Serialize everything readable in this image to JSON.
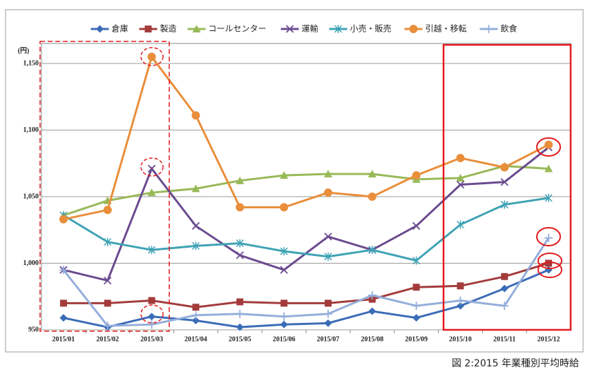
{
  "chart_data": {
    "type": "line",
    "y_unit": "(円)",
    "caption": "図 2:2015 年業種別平均時給",
    "categories": [
      "2015/01",
      "2015/02",
      "2015/03",
      "2015/04",
      "2015/05",
      "2015/06",
      "2015/07",
      "2015/08",
      "2015/09",
      "2015/10",
      "2015/11",
      "2015/12"
    ],
    "ylim": [
      950,
      1165
    ],
    "yticks": [
      950,
      {
        "value": 1000,
        "label": "1,000"
      },
      {
        "value": 1050,
        "label": "1,050"
      },
      {
        "value": 1100,
        "label": "1,100"
      },
      {
        "value": 1150,
        "label": "1,150"
      }
    ],
    "grid": true,
    "legend": "top",
    "series": [
      {
        "name": "倉庫",
        "color": "#3b6cb7",
        "marker": "diamond",
        "values": [
          959,
          952,
          960,
          957,
          952,
          954,
          955,
          964,
          959,
          968,
          981,
          995
        ]
      },
      {
        "name": "製造",
        "color": "#a33b3b",
        "marker": "square",
        "values": [
          970,
          970,
          972,
          967,
          971,
          970,
          970,
          973,
          982,
          983,
          990,
          1000
        ]
      },
      {
        "name": "コールセンター",
        "color": "#98b957",
        "marker": "triangle",
        "values": [
          1036,
          1047,
          1053,
          1056,
          1062,
          1066,
          1067,
          1067,
          1063,
          1064,
          1073,
          1071
        ]
      },
      {
        "name": "運輸",
        "color": "#6a4a8f",
        "marker": "x",
        "values": [
          995,
          987,
          1071,
          1028,
          1006,
          995,
          1020,
          1010,
          1028,
          1059,
          1061,
          1087
        ]
      },
      {
        "name": "小売・販売",
        "color": "#3fa3b5",
        "marker": "star",
        "values": [
          1036,
          1016,
          1010,
          1013,
          1015,
          1009,
          1005,
          1010,
          1002,
          1029,
          1044,
          1049
        ]
      },
      {
        "name": "引越・移転",
        "color": "#e98e3a",
        "marker": "circle",
        "values": [
          1033,
          1040,
          1155,
          1111,
          1042,
          1042,
          1053,
          1050,
          1066,
          1079,
          1072,
          1089
        ]
      },
      {
        "name": "飲食",
        "color": "#94aedb",
        "marker": "plus",
        "values": [
          995,
          953,
          954,
          961,
          962,
          960,
          962,
          976,
          968,
          972,
          968,
          1019
        ]
      }
    ]
  }
}
